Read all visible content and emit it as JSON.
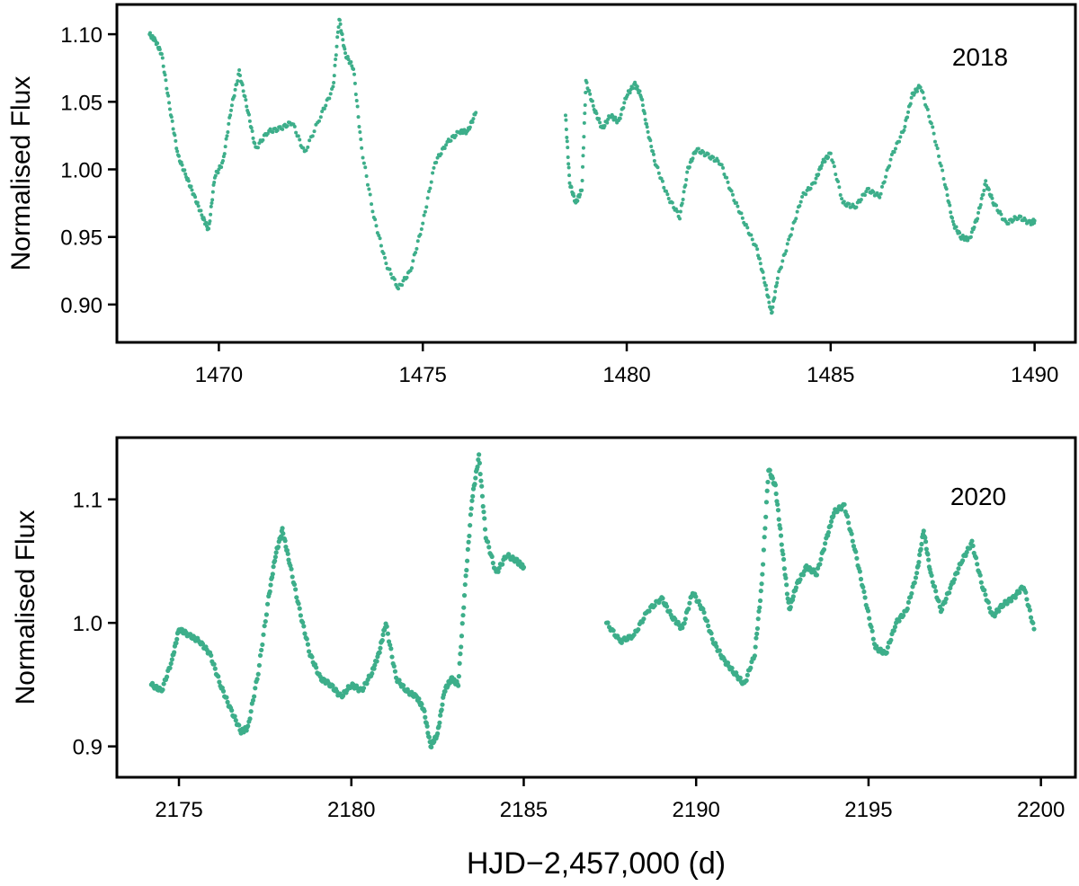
{
  "figure": {
    "xlabel": "HJD−2,457,000 (d)",
    "point_color": "#3dae8a"
  },
  "chart_data": [
    {
      "type": "scatter",
      "annotation": "2018",
      "ylabel": "Normalised Flux",
      "xlim": [
        1467.5,
        1491.0
      ],
      "ylim": [
        0.872,
        1.122
      ],
      "xticks": [
        "1470",
        "1475",
        "1480",
        "1485",
        "1490"
      ],
      "xtick_values": [
        1470,
        1475,
        1480,
        1485,
        1490
      ],
      "yticks": [
        "0.90",
        "0.95",
        "1.00",
        "1.05",
        "1.10"
      ],
      "ytick_values": [
        0.9,
        0.95,
        1.0,
        1.05,
        1.1
      ],
      "series": [
        {
          "segments": [
            {
              "x": [
                1468.3,
                1468.45,
                1468.6,
                1468.8,
                1469.0,
                1469.2,
                1469.4,
                1469.6,
                1469.75,
                1469.9,
                1470.1,
                1470.3,
                1470.5,
                1470.7,
                1470.9,
                1471.2,
                1471.5,
                1471.8,
                1472.1,
                1472.5,
                1472.8,
                1472.95,
                1473.1,
                1473.3,
                1473.5,
                1473.8,
                1474.1,
                1474.4,
                1474.7,
                1475.0,
                1475.3,
                1475.6,
                1475.9,
                1476.1,
                1476.3
              ],
              "y": [
                1.1,
                1.095,
                1.085,
                1.045,
                1.01,
                0.995,
                0.98,
                0.965,
                0.955,
                0.995,
                1.005,
                1.045,
                1.072,
                1.045,
                1.015,
                1.028,
                1.03,
                1.035,
                1.012,
                1.04,
                1.06,
                1.112,
                1.085,
                1.075,
                1.015,
                0.965,
                0.93,
                0.912,
                0.925,
                0.96,
                1.005,
                1.02,
                1.028,
                1.028,
                1.042
              ]
            },
            {
              "x": [
                1478.5,
                1478.6,
                1478.75,
                1478.9,
                1479.0,
                1479.2,
                1479.4,
                1479.6,
                1479.8,
                1480.0,
                1480.2,
                1480.35,
                1480.5,
                1480.7,
                1481.0,
                1481.3,
                1481.5,
                1481.7,
                1482.0,
                1482.3,
                1482.6,
                1482.9,
                1483.2,
                1483.4,
                1483.55,
                1483.7,
                1484.0,
                1484.3,
                1484.6,
                1484.8,
                1485.0,
                1485.3,
                1485.6,
                1485.9,
                1486.2,
                1486.5,
                1486.8,
                1487.0,
                1487.2,
                1487.5,
                1487.8,
                1488.0,
                1488.2,
                1488.4,
                1488.6,
                1488.8,
                1489.0,
                1489.3,
                1489.6,
                1489.9,
                1490.0
              ],
              "y": [
                1.04,
                0.99,
                0.975,
                0.985,
                1.065,
                1.045,
                1.03,
                1.04,
                1.035,
                1.055,
                1.063,
                1.055,
                1.03,
                1.005,
                0.98,
                0.965,
                1.0,
                1.015,
                1.01,
                1.005,
                0.98,
                0.96,
                0.94,
                0.915,
                0.893,
                0.92,
                0.95,
                0.98,
                0.99,
                1.005,
                1.012,
                0.975,
                0.972,
                0.985,
                0.98,
                1.01,
                1.03,
                1.055,
                1.062,
                1.03,
                0.99,
                0.96,
                0.95,
                0.948,
                0.965,
                0.99,
                0.975,
                0.96,
                0.965,
                0.96,
                0.962
              ]
            }
          ]
        }
      ]
    },
    {
      "type": "scatter",
      "annotation": "2020",
      "ylabel": "Normalised Flux",
      "xlim": [
        2173.2,
        2201.0
      ],
      "ylim": [
        0.875,
        1.15
      ],
      "xticks": [
        "2175",
        "2180",
        "2185",
        "2190",
        "2195",
        "2200"
      ],
      "xtick_values": [
        2175,
        2180,
        2185,
        2190,
        2195,
        2200
      ],
      "yticks": [
        "0.9",
        "1.0",
        "1.1"
      ],
      "ytick_values": [
        0.9,
        1.0,
        1.1
      ],
      "series": [
        {
          "segments": [
            {
              "x": [
                2174.2,
                2174.5,
                2174.8,
                2175.0,
                2175.3,
                2175.6,
                2175.9,
                2176.2,
                2176.5,
                2176.8,
                2177.0,
                2177.3,
                2177.6,
                2177.8,
                2178.0,
                2178.2,
                2178.5,
                2178.8,
                2179.1,
                2179.4,
                2179.7,
                2180.0,
                2180.3,
                2180.6,
                2180.8,
                2181.0,
                2181.3,
                2181.6,
                2181.9,
                2182.1,
                2182.3,
                2182.5,
                2182.7,
                2182.9,
                2183.1,
                2183.3,
                2183.5,
                2183.7,
                2183.9,
                2184.2,
                2184.5,
                2184.8,
                2185.0
              ],
              "y": [
                0.95,
                0.945,
                0.97,
                0.995,
                0.99,
                0.985,
                0.975,
                0.95,
                0.93,
                0.912,
                0.915,
                0.96,
                1.02,
                1.055,
                1.075,
                1.05,
                1.01,
                0.975,
                0.955,
                0.95,
                0.94,
                0.95,
                0.945,
                0.96,
                0.975,
                1.0,
                0.955,
                0.945,
                0.94,
                0.93,
                0.9,
                0.91,
                0.945,
                0.955,
                0.95,
                1.03,
                1.1,
                1.135,
                1.07,
                1.04,
                1.055,
                1.05,
                1.045
              ]
            },
            {
              "x": [
                2187.4,
                2187.8,
                2188.2,
                2188.6,
                2189.0,
                2189.3,
                2189.6,
                2189.9,
                2190.2,
                2190.5,
                2190.8,
                2191.1,
                2191.4,
                2191.7,
                2191.9,
                2192.1,
                2192.3,
                2192.5,
                2192.7,
                2192.9,
                2193.2,
                2193.5,
                2193.8,
                2194.0,
                2194.3,
                2194.6,
                2194.9,
                2195.2,
                2195.5,
                2195.8,
                2196.1,
                2196.4,
                2196.6,
                2196.8,
                2197.1,
                2197.4,
                2197.7,
                2198.0,
                2198.3,
                2198.6,
                2198.9,
                2199.2,
                2199.5,
                2199.8
              ],
              "y": [
                1.0,
                0.985,
                0.99,
                1.01,
                1.02,
                1.005,
                0.995,
                1.025,
                1.01,
                0.985,
                0.97,
                0.96,
                0.95,
                0.975,
                1.03,
                1.125,
                1.11,
                1.06,
                1.01,
                1.03,
                1.045,
                1.04,
                1.07,
                1.09,
                1.095,
                1.06,
                1.02,
                0.98,
                0.975,
                1.0,
                1.01,
                1.04,
                1.075,
                1.04,
                1.01,
                1.03,
                1.05,
                1.065,
                1.03,
                1.005,
                1.015,
                1.02,
                1.03,
                0.995
              ]
            }
          ]
        }
      ]
    }
  ]
}
